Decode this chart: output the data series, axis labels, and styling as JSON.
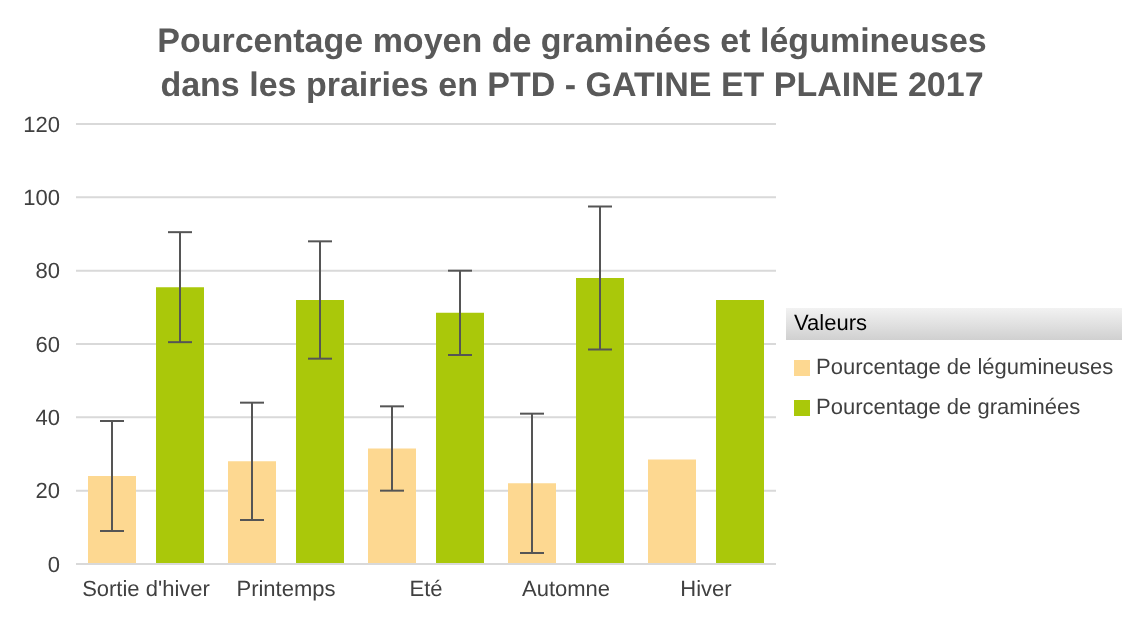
{
  "chart_data": {
    "type": "bar",
    "title": "Pourcentage moyen de graminées et légumineuses dans les prairies en PTD -  GATINE ET PLAINE 2017",
    "categories": [
      "Sortie d'hiver",
      "Printemps",
      "Eté",
      "Automne",
      "Hiver"
    ],
    "series": [
      {
        "name": "Pourcentage de légumineuses",
        "color": "#fdd891",
        "values": [
          24,
          28,
          31.5,
          22,
          28.5
        ],
        "errors": [
          15,
          16,
          11.5,
          19,
          0
        ]
      },
      {
        "name": "Pourcentage de graminées",
        "color": "#aac80a",
        "values": [
          75.5,
          72,
          68.5,
          78,
          72
        ],
        "errors": [
          15,
          16,
          11.5,
          19.5,
          0
        ]
      }
    ],
    "ylim": [
      0,
      120
    ],
    "yticks": [
      0,
      20,
      40,
      60,
      80,
      100,
      120
    ],
    "grid": "y",
    "legend": "right",
    "legend_title": "Valeurs"
  }
}
